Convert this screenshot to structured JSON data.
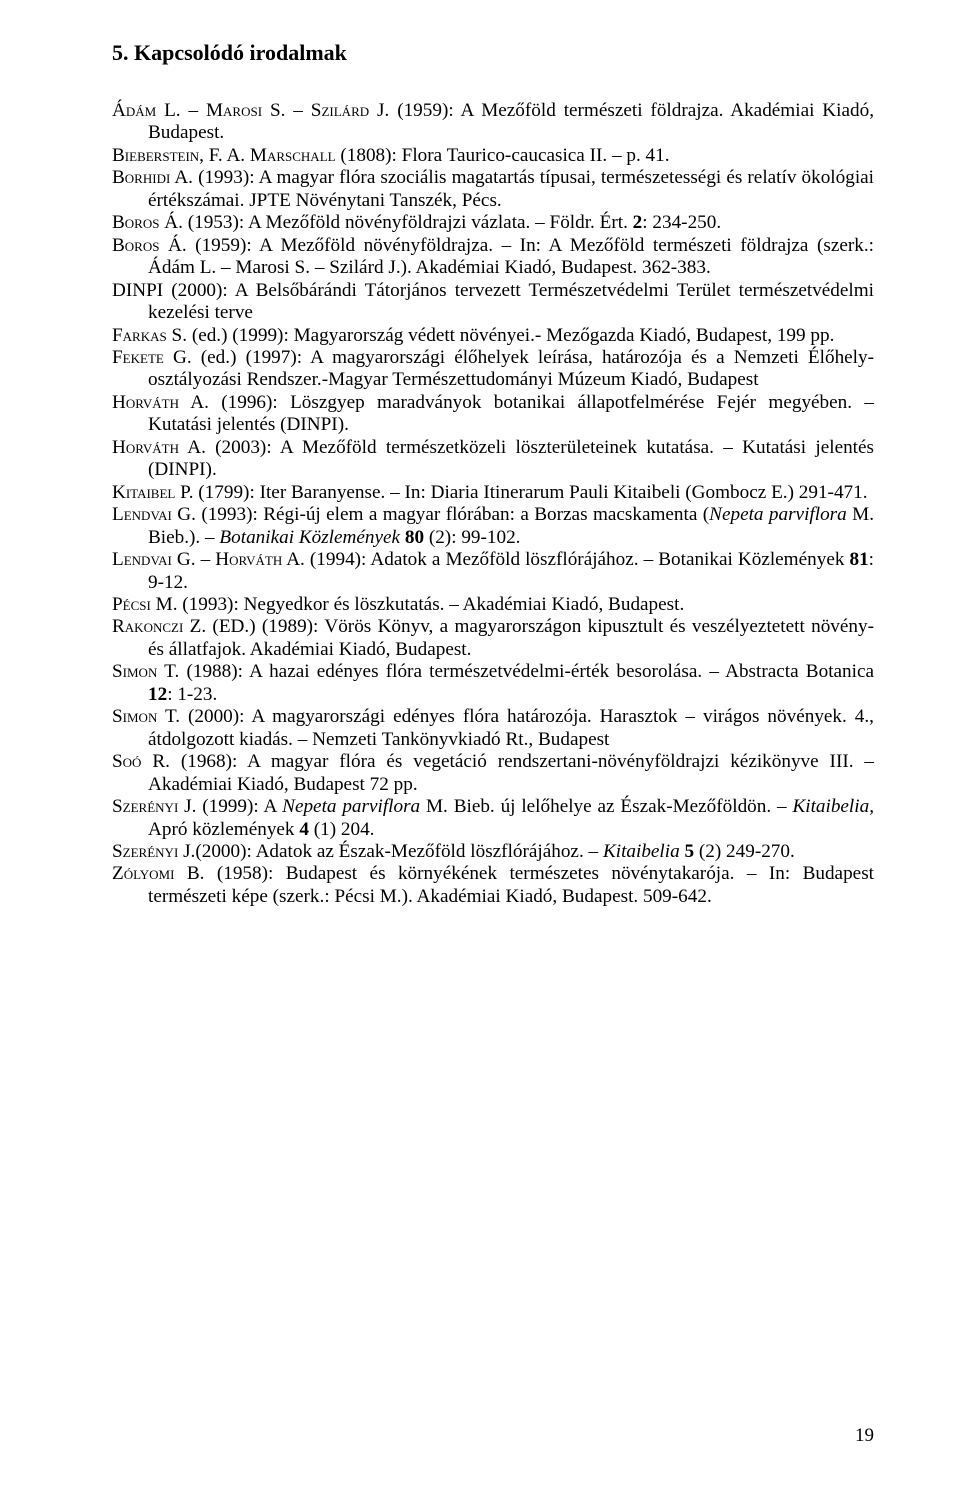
{
  "heading": "5. Kapcsolódó irodalmak",
  "entries": [
    {
      "authors": "Ádám L. – Marosi S. – Szilárd J.",
      "rest": " (1959): A Mezőföld természeti földrajza. Akadémiai Kiadó, Budapest."
    },
    {
      "authors": "Bieberstein, F. A. Marschall",
      "rest": " (1808): Flora Taurico-caucasica II. – p. 41."
    },
    {
      "authors": "Borhidi A.",
      "rest": " (1993): A magyar flóra szociális magatartás típusai, természetességi és relatív ökológiai értékszámai. JPTE Növénytani Tanszék, Pécs."
    },
    {
      "authors": "Boros Á.",
      "rest": " (1953): A Mezőföld növényföldrajzi vázlata. – Földr. Ért. ",
      "bold_tail": "2",
      "after_bold": ": 234-250."
    },
    {
      "authors": "Boros Á.",
      "rest": " (1959): A Mezőföld növényföldrajza. – In: A Mezőföld természeti földrajza (szerk.: Ádám L. – Marosi S. – Szilárd J.). Akadémiai Kiadó, Budapest. 362-383."
    },
    {
      "authors": "",
      "rest": "DINPI (2000): A Belsőbárándi Tátorjános tervezett Természetvédelmi Terület természetvédelmi kezelési terve"
    },
    {
      "authors": "Farkas S.",
      "rest": " (ed.) (1999): Magyarország védett növényei.- Mezőgazda Kiadó, Budapest, 199 pp."
    },
    {
      "authors": "Fekete G.",
      "rest": " (ed.) (1997): A magyarországi élőhelyek leírása, határozója és a Nemzeti Élőhely-osztályozási Rendszer.-Magyar Természettudományi Múzeum Kiadó, Budapest"
    },
    {
      "authors": "Horváth A.",
      "rest": " (1996): Löszgyep maradványok botanikai állapotfelmérése Fejér megyében. – Kutatási jelentés (DINPI)."
    },
    {
      "authors": "Horváth A.",
      "rest": " (2003): A Mezőföld természetközeli löszterületeinek kutatása. – Kutatási jelentés (DINPI)."
    },
    {
      "authors": "Kitaibel P.",
      "rest": " (1799): Iter Baranyense. – In: Diaria Itinerarum Pauli Kitaibeli (Gombocz E.) 291-471."
    },
    {
      "authors": "Lendvai G.",
      "rest": " (1993): Régi-új elem a magyar flórában: a Borzas macskamenta (",
      "italic_mid": "Nepeta parviflora",
      "rest2": " M. Bieb.). – ",
      "italic_mid2": "Botanikai Közlemények",
      "rest3": " ",
      "bold_tail": "80",
      "after_bold": " (2): 99-102."
    },
    {
      "authors": "Lendvai G. – Horváth A.",
      "rest": " (1994): Adatok a Mezőföld löszflórájához. – Botanikai Közlemények ",
      "bold_tail": "81",
      "after_bold": ": 9-12."
    },
    {
      "authors": "Pécsi M.",
      "rest": " (1993): Negyedkor és löszkutatás. – Akadémiai Kiadó, Budapest."
    },
    {
      "authors": "Rakonczi Z. (ED.)",
      "rest": " (1989): Vörös Könyv, a magyarországon kipusztult és veszélyeztetett növény- és állatfajok. Akadémiai Kiadó, Budapest."
    },
    {
      "authors": "Simon T.",
      "rest": " (1988): A hazai edényes flóra természetvédelmi-érték besorolása. – Abstracta Botanica ",
      "bold_tail": "12",
      "after_bold": ": 1-23."
    },
    {
      "authors": "Simon T.",
      "rest": " (2000): A magyarországi edényes flóra határozója. Harasztok – virágos növények. 4., átdolgozott kiadás. – Nemzeti Tankönyvkiadó Rt., Budapest"
    },
    {
      "authors": "Soó R.",
      "rest": " (1968): A magyar flóra és vegetáció rendszertani-növényföldrajzi kézikönyve III. – Akadémiai Kiadó, Budapest 72 pp."
    },
    {
      "authors": "Szerényi J.",
      "rest": " (1999): A ",
      "italic_mid": "Nepeta parviflora",
      "rest2": " M. Bieb. új lelőhelye az Észak-Mezőföldön. – ",
      "italic_mid2": "Kitaibelia,",
      "rest3": " Apró közlemények ",
      "bold_tail": "4",
      "after_bold": " (1) 204."
    },
    {
      "authors": "Szerényi J.",
      "rest": "(2000): Adatok az Észak-Mezőföld löszflórájához. – ",
      "italic_mid": "Kitaibelia",
      "rest2": " ",
      "bold_tail": "5",
      "after_bold": " (2) 249-270."
    },
    {
      "authors": "Zólyomi B.",
      "rest": " (1958): Budapest és környékének természetes növénytakarója. – In: Budapest természeti képe (szerk.: Pécsi M.). Akadémiai Kiadó, Budapest. 509-642."
    }
  ],
  "page_number": "19"
}
